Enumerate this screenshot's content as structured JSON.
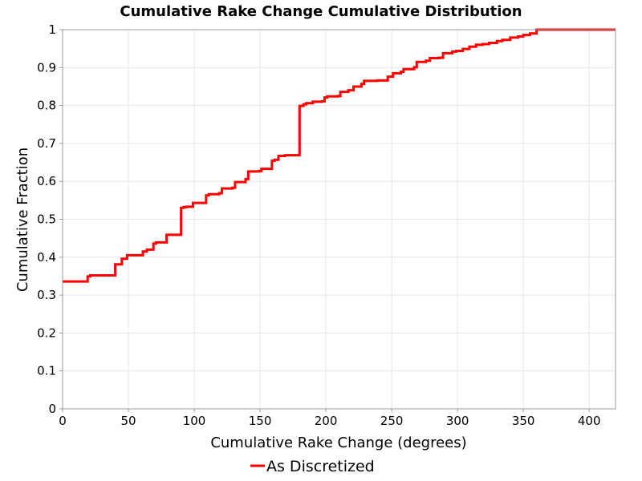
{
  "chart_data": {
    "type": "line",
    "title": "Cumulative Rake Change Cumulative Distribution",
    "xlabel": "Cumulative Rake Change (degrees)",
    "ylabel": "Cumulative Fraction",
    "xlim": [
      0,
      420
    ],
    "ylim": [
      0,
      1
    ],
    "x_ticks": [
      "0",
      "50",
      "100",
      "150",
      "200",
      "250",
      "300",
      "350",
      "400"
    ],
    "y_ticks": [
      "0",
      "0.1",
      "0.2",
      "0.3",
      "0.4",
      "0.5",
      "0.6",
      "0.7",
      "0.8",
      "0.9",
      "1"
    ],
    "grid": true,
    "legend_position": "bottom",
    "step": true,
    "series": [
      {
        "name": "As Discretized",
        "color": "#ff0000",
        "x": [
          0,
          19,
          21,
          38,
          40,
          43,
          45,
          49,
          59,
          61,
          64,
          69,
          71,
          79,
          89,
          90,
          92,
          94,
          99,
          107,
          109,
          111,
          119,
          121,
          129,
          131,
          139,
          141,
          149,
          151,
          159,
          161,
          164,
          169,
          179,
          180,
          183,
          185,
          190,
          197,
          199,
          201,
          209,
          211,
          217,
          221,
          227,
          229,
          239,
          247,
          251,
          257,
          259,
          267,
          269,
          276,
          279,
          286,
          289,
          296,
          299,
          304,
          309,
          314,
          319,
          324,
          330,
          334,
          340,
          346,
          350,
          355,
          360,
          420
        ],
        "y": [
          0.336,
          0.349,
          0.352,
          0.352,
          0.381,
          0.381,
          0.396,
          0.405,
          0.405,
          0.415,
          0.42,
          0.436,
          0.439,
          0.459,
          0.459,
          0.53,
          0.532,
          0.533,
          0.543,
          0.543,
          0.563,
          0.566,
          0.569,
          0.581,
          0.583,
          0.598,
          0.606,
          0.626,
          0.627,
          0.633,
          0.654,
          0.657,
          0.667,
          0.669,
          0.669,
          0.799,
          0.803,
          0.806,
          0.81,
          0.811,
          0.821,
          0.824,
          0.825,
          0.836,
          0.84,
          0.85,
          0.857,
          0.865,
          0.866,
          0.876,
          0.885,
          0.889,
          0.896,
          0.901,
          0.915,
          0.918,
          0.925,
          0.926,
          0.938,
          0.942,
          0.944,
          0.949,
          0.955,
          0.96,
          0.962,
          0.965,
          0.97,
          0.973,
          0.979,
          0.982,
          0.986,
          0.99,
          1.0,
          1.0
        ]
      }
    ]
  }
}
